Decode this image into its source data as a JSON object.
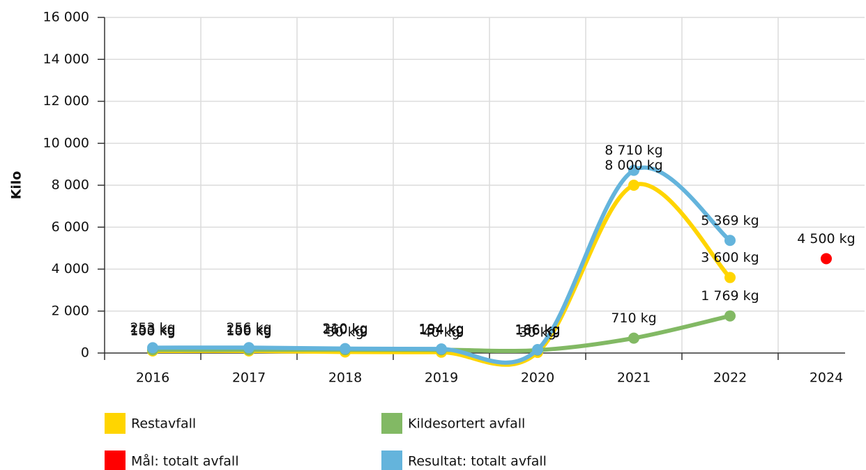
{
  "chart_data": {
    "type": "line",
    "y_axis_label": "Kilo",
    "categories": [
      "2016",
      "2017",
      "2018",
      "2019",
      "2020",
      "2021",
      "2022",
      "2024"
    ],
    "ylim": [
      0,
      16000
    ],
    "yticks": [
      0,
      {
        "value": 2000,
        "label": "2 000"
      },
      {
        "value": 4000,
        "label": "4 000"
      },
      {
        "value": 6000,
        "label": "6 000"
      },
      {
        "value": 8000,
        "label": "8 000"
      },
      {
        "value": 10000,
        "label": "10 000"
      },
      {
        "value": 12000,
        "label": "12 000"
      },
      {
        "value": 14000,
        "label": "14 000"
      },
      {
        "value": 16000,
        "label": "16 000"
      }
    ],
    "grid": true,
    "series": [
      {
        "name": "Restavfall",
        "color": "#ffd500",
        "values": [
          100,
          100,
          50,
          40,
          30,
          8000,
          3600,
          null
        ],
        "value_labels": [
          "100 kg",
          "100 kg",
          "50 kg",
          "40 kg",
          "30 kg",
          "8 000 kg",
          "3 600 kg",
          null
        ]
      },
      {
        "name": "Kildesortert avfall",
        "color": "#82b964",
        "values": [
          153,
          156,
          160,
          154,
          136,
          710,
          1769,
          null
        ],
        "value_labels": [
          "153 kg",
          "156 kg",
          "160 kg",
          "154 kg",
          "136 kg",
          "710 kg",
          "1 769 kg",
          null
        ]
      },
      {
        "name": "Mål: totalt avfall",
        "color": "#ff0000",
        "type": "scatter",
        "values": [
          null,
          null,
          null,
          null,
          null,
          null,
          null,
          4500
        ],
        "value_labels": [
          null,
          null,
          null,
          null,
          null,
          null,
          null,
          "4 500 kg"
        ]
      },
      {
        "name": "Resultat: totalt avfall",
        "color": "#64b4dc",
        "values": [
          253,
          256,
          210,
          194,
          166,
          8710,
          5369,
          null
        ],
        "value_labels": [
          "253 kg",
          "256 kg",
          "210 kg",
          "194 kg",
          "166 kg",
          "8 710 kg",
          "5 369 kg",
          null
        ]
      }
    ]
  }
}
